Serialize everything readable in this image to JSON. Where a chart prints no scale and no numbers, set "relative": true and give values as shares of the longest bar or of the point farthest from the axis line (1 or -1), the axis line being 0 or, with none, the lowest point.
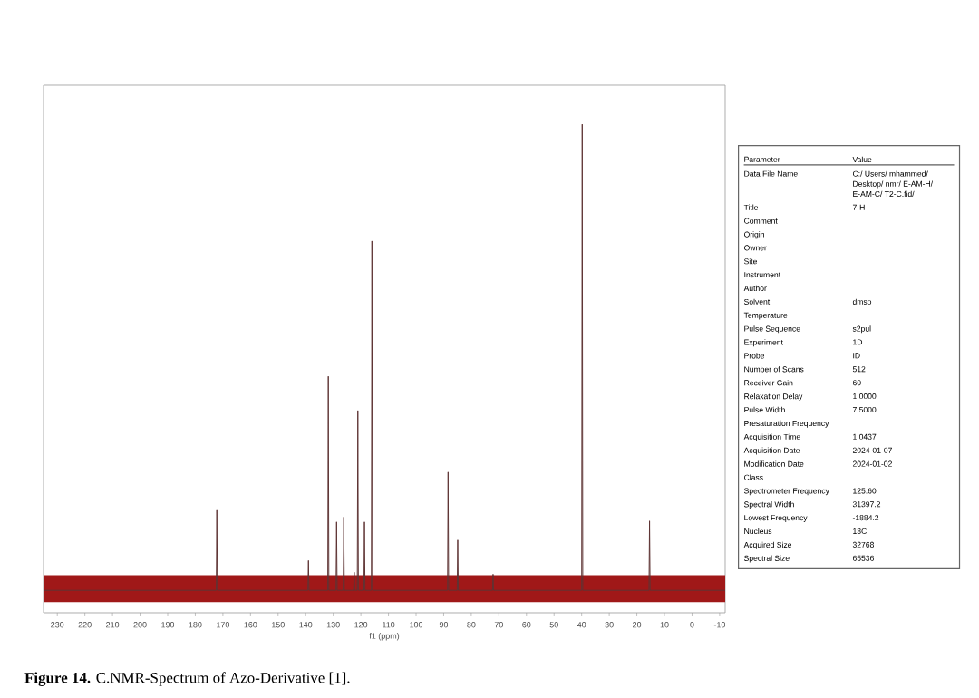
{
  "chart_data": [
    {
      "type": "line",
      "relative": true,
      "xlabel": "f1 (ppm)",
      "xlim": [
        235,
        -12
      ],
      "xticks": [
        230,
        220,
        210,
        200,
        190,
        180,
        170,
        160,
        150,
        140,
        130,
        120,
        110,
        100,
        90,
        80,
        70,
        60,
        50,
        40,
        30,
        20,
        10,
        0,
        -10
      ],
      "x": [
        235,
        172.4,
        172.2,
        172.0,
        139.2,
        139.0,
        138.8,
        132.0,
        131.8,
        131.6,
        129.0,
        128.8,
        128.6,
        126.4,
        126.2,
        126.0,
        122.6,
        122.4,
        122.2,
        121.3,
        121.1,
        120.9,
        118.9,
        118.7,
        118.5,
        116.2,
        116.0,
        115.8,
        88.6,
        88.4,
        88.2,
        85.1,
        84.9,
        84.7,
        72.3,
        72.1,
        71.9,
        40.0,
        39.8,
        39.6,
        15.6,
        15.4,
        15.2,
        -12
      ],
      "values": [
        0.046,
        0.046,
        0.21,
        0.046,
        0.046,
        0.107,
        0.046,
        0.046,
        0.484,
        0.046,
        0.046,
        0.186,
        0.046,
        0.046,
        0.196,
        0.046,
        0.046,
        0.083,
        0.046,
        0.046,
        0.414,
        0.046,
        0.046,
        0.186,
        0.046,
        0.046,
        0.761,
        0.046,
        0.046,
        0.288,
        0.046,
        0.046,
        0.149,
        0.046,
        0.046,
        0.079,
        0.046,
        0.046,
        1.0,
        0.046,
        0.046,
        0.188,
        0.046,
        0.046
      ],
      "color": "#5e3434",
      "bands": [
        {
          "axis": "y",
          "from": 0.022,
          "to": 0.077,
          "color": "#a01818"
        }
      ],
      "annotations": [
        "**Figure 14.** C.NMR-Spectrum of Azo-Derivative [1]."
      ]
    },
    {
      "type": "other",
      "categories": [
        "Parameter",
        "Data File Name",
        "Title",
        "Comment",
        "Origin",
        "Owner",
        "Site",
        "Instrument",
        "Author",
        "Solvent",
        "Temperature",
        "Pulse Sequence",
        "Experiment",
        "Probe",
        "Number of Scans",
        "Receiver Gain",
        "Relaxation Delay",
        "Pulse Width",
        "Presaturation Frequency",
        "Acquisition Time",
        "Acquisition Date",
        "Modification Date",
        "Class",
        "Spectrometer Frequency",
        "Spectral Width",
        "Lowest Frequency",
        "Nucleus",
        "Acquired Size",
        "Spectral Size"
      ],
      "value_labels": [
        "Value",
        "C:/ Users/ mhammed/ Desktop/ nmr/ E-AM-H/ E-AM-C/ T2-C.fid/",
        "7-H",
        null,
        null,
        null,
        null,
        null,
        null,
        "dmso",
        null,
        "s2pul",
        "1D",
        "ID",
        "512",
        "60",
        "1.0000",
        "7.5000",
        null,
        "1.0437",
        "2024-01-07",
        "2024-01-02",
        null,
        "125.60",
        "31397.2",
        "-1884.2",
        "13C",
        "32768",
        "65536"
      ]
    }
  ]
}
